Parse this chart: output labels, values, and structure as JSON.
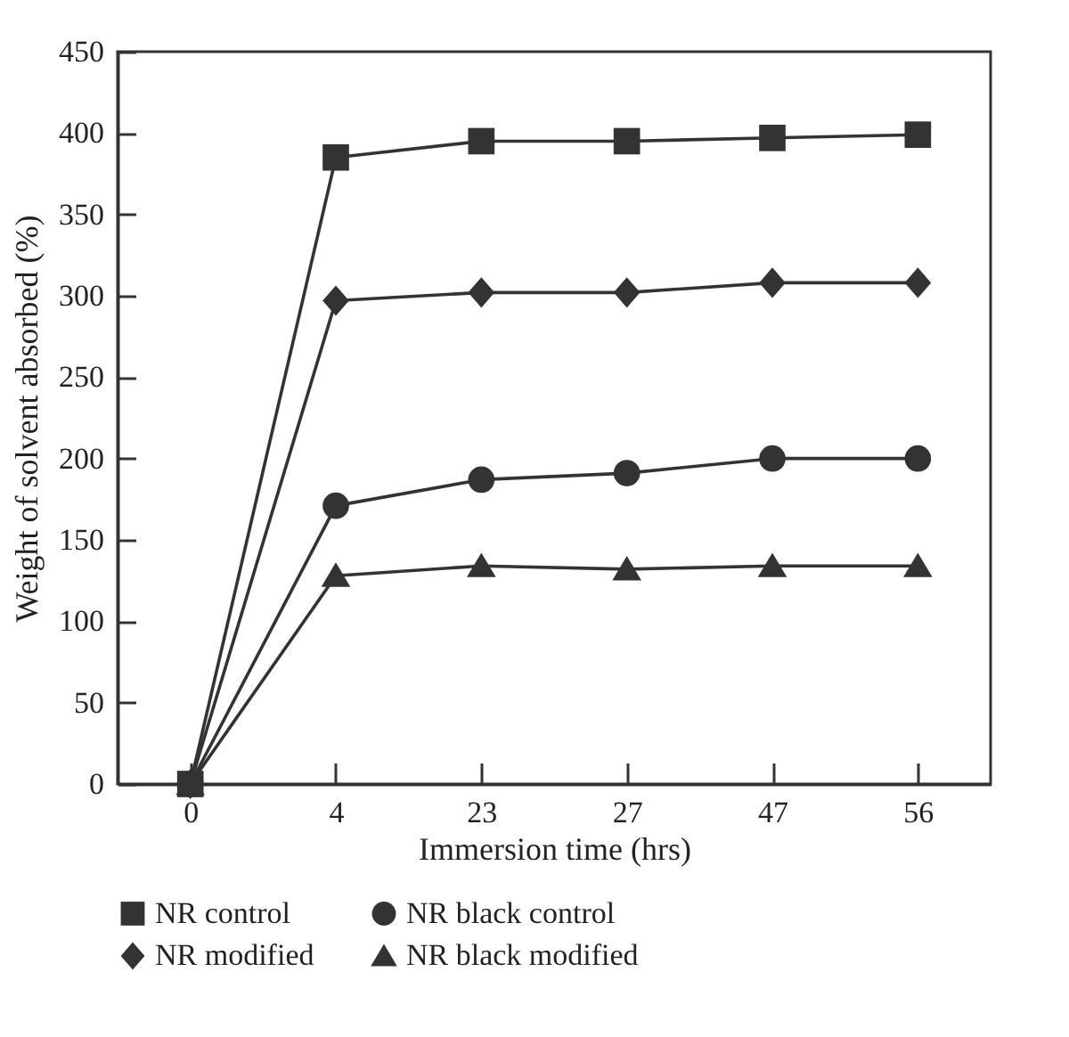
{
  "chart_data": {
    "type": "line",
    "xlabel": "Immersion time (hrs)",
    "ylabel": "Weight of solvent absorbed (%)",
    "categories": [
      "0",
      "4",
      "23",
      "27",
      "47",
      "56"
    ],
    "series": [
      {
        "name": "NR control",
        "color": "#333333",
        "marker": "square",
        "values": [
          0,
          385,
          395,
          395,
          397,
          399
        ]
      },
      {
        "name": "NR black control",
        "color": "#333333",
        "marker": "circle",
        "values": [
          0,
          171,
          187,
          191,
          200,
          200
        ]
      },
      {
        "name": "NR modified",
        "color": "#333333",
        "marker": "diamond",
        "values": [
          0,
          297,
          302,
          302,
          308,
          308
        ]
      },
      {
        "name": "NR black modified",
        "color": "#333333",
        "marker": "triangle",
        "values": [
          0,
          128,
          134,
          132,
          134,
          134
        ]
      }
    ],
    "ylim": [
      0,
      450
    ],
    "yticks": [
      0,
      50,
      100,
      150,
      200,
      250,
      300,
      350,
      400,
      450
    ],
    "grid": false,
    "legend": "bottom",
    "line_style": "solid"
  }
}
